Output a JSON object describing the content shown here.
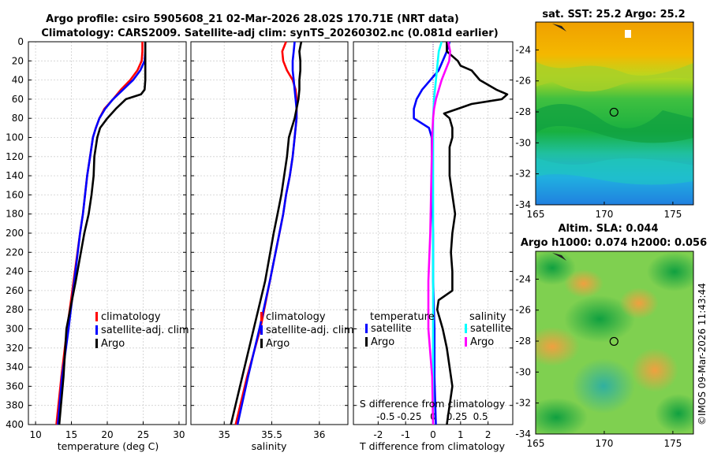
{
  "header": {
    "title_line1": "Argo profile: csiro 5905608_21 02-Mar-2026 28.02S 170.71E (NRT data)",
    "title_line2": "Climatology: CARS2009. Satellite-adj clim: synTS_20260302.nc (0.081d earlier)"
  },
  "colors": {
    "climatology": "#ff0000",
    "satellite": "#0000ff",
    "argo": "#000000",
    "sal_satellite": "#00ffff",
    "sal_argo": "#ff00ff"
  },
  "chart_data": [
    {
      "type": "line",
      "name": "temperature",
      "xlabel": "temperature (deg C)",
      "ylabel": "",
      "xlim": [
        9,
        31
      ],
      "ylim": [
        400,
        0
      ],
      "xticks": [
        "10",
        "15",
        "20",
        "25",
        "30"
      ],
      "yticks": [
        "0",
        "20",
        "40",
        "60",
        "80",
        "100",
        "120",
        "140",
        "160",
        "180",
        "200",
        "220",
        "240",
        "260",
        "280",
        "300",
        "320",
        "340",
        "360",
        "380",
        "400"
      ],
      "grid": true,
      "legend": {
        "position": "lower-right",
        "labels": [
          "climatology",
          "satellite-adj. clim",
          "Argo"
        ]
      },
      "series": [
        {
          "name": "climatology",
          "color_key": "climatology",
          "depth": [
            0,
            10,
            20,
            30,
            40,
            50,
            60,
            70,
            80,
            90,
            100,
            120,
            140,
            160,
            180,
            200,
            250,
            300,
            350,
            400
          ],
          "values": [
            24.9,
            24.9,
            24.8,
            24.2,
            23.2,
            21.9,
            20.8,
            19.6,
            18.9,
            18.4,
            18.0,
            17.6,
            17.2,
            16.9,
            16.6,
            16.2,
            15.3,
            14.4,
            13.6,
            12.9
          ]
        },
        {
          "name": "satellite-adj. clim",
          "color_key": "satellite",
          "depth": [
            0,
            10,
            20,
            30,
            40,
            50,
            60,
            70,
            80,
            90,
            100,
            120,
            140,
            160,
            180,
            200,
            250,
            300,
            350,
            400
          ],
          "values": [
            25.3,
            25.3,
            25.2,
            24.6,
            23.6,
            22.2,
            20.8,
            19.7,
            18.9,
            18.4,
            18.0,
            17.6,
            17.2,
            16.9,
            16.6,
            16.2,
            15.4,
            14.6,
            13.7,
            13.1
          ]
        },
        {
          "name": "Argo",
          "color_key": "argo",
          "depth": [
            0,
            10,
            20,
            30,
            40,
            50,
            55,
            60,
            70,
            80,
            90,
            100,
            120,
            140,
            160,
            180,
            200,
            250,
            300,
            350,
            400
          ],
          "values": [
            25.3,
            25.3,
            25.3,
            25.3,
            25.3,
            25.2,
            24.7,
            22.6,
            21.2,
            20.0,
            19.0,
            18.6,
            18.2,
            18.1,
            17.8,
            17.4,
            16.8,
            15.6,
            14.3,
            13.9,
            13.3
          ]
        }
      ]
    },
    {
      "type": "line",
      "name": "salinity",
      "xlabel": "salinity",
      "xlim": [
        34.65,
        36.3
      ],
      "ylim": [
        400,
        0
      ],
      "xticks": [
        "35",
        "35.5",
        "36"
      ],
      "grid": true,
      "legend": {
        "position": "lower-right",
        "labels": [
          "climatology",
          "satellite-adj. clim",
          "Argo"
        ]
      },
      "series": [
        {
          "name": "climatology",
          "color_key": "climatology",
          "depth": [
            0,
            10,
            20,
            30,
            40,
            50,
            60,
            70,
            80,
            100,
            120,
            140,
            160,
            180,
            200,
            250,
            300,
            350,
            400
          ],
          "values": [
            35.65,
            35.61,
            35.62,
            35.66,
            35.72,
            35.75,
            35.76,
            35.76,
            35.76,
            35.74,
            35.72,
            35.69,
            35.65,
            35.62,
            35.58,
            35.48,
            35.38,
            35.24,
            35.12
          ]
        },
        {
          "name": "satellite-adj. clim",
          "color_key": "satellite",
          "depth": [
            0,
            10,
            20,
            30,
            40,
            50,
            60,
            70,
            80,
            100,
            120,
            140,
            160,
            180,
            200,
            250,
            300,
            350,
            400
          ],
          "values": [
            35.74,
            35.73,
            35.72,
            35.72,
            35.73,
            35.74,
            35.75,
            35.76,
            35.76,
            35.74,
            35.72,
            35.69,
            35.65,
            35.62,
            35.58,
            35.48,
            35.37,
            35.25,
            35.14
          ]
        },
        {
          "name": "Argo",
          "color_key": "argo",
          "depth": [
            0,
            10,
            20,
            30,
            40,
            50,
            60,
            70,
            80,
            90,
            100,
            120,
            140,
            160,
            180,
            200,
            250,
            300,
            350,
            400
          ],
          "values": [
            35.81,
            35.79,
            35.8,
            35.8,
            35.79,
            35.79,
            35.78,
            35.76,
            35.74,
            35.71,
            35.68,
            35.66,
            35.63,
            35.6,
            35.56,
            35.52,
            35.43,
            35.31,
            35.19,
            35.07
          ]
        }
      ]
    },
    {
      "type": "line",
      "name": "differences",
      "xlabel": "T difference from climatology",
      "xlabel2": "S difference from climatology",
      "xlim": [
        -2.9,
        2.9
      ],
      "ylim": [
        400,
        0
      ],
      "xticks": [
        "-2",
        "-1",
        "0",
        "1",
        "2"
      ],
      "xticks2": [
        "-0.5",
        "-0.25",
        "0",
        "0.25",
        "0.5"
      ],
      "grid": true,
      "legend_temperature": {
        "title": "temperature",
        "labels": [
          "satellite",
          "Argo"
        ]
      },
      "legend_salinity": {
        "title": "salinity",
        "labels": [
          "satellite",
          "Argo"
        ]
      },
      "series": [
        {
          "name": "temperature satellite",
          "color_key": "satellite",
          "depth": [
            0,
            10,
            20,
            30,
            40,
            50,
            60,
            70,
            80,
            90,
            100,
            150,
            200,
            250,
            300,
            350,
            400
          ],
          "values": [
            0.6,
            0.5,
            0.35,
            0.2,
            -0.1,
            -0.4,
            -0.6,
            -0.7,
            -0.7,
            -0.15,
            -0.05,
            -0.05,
            0.0,
            0.0,
            0.05,
            0.05,
            0.1
          ]
        },
        {
          "name": "temperature Argo",
          "color_key": "argo",
          "depth": [
            0,
            10,
            20,
            25,
            30,
            40,
            50,
            55,
            60,
            65,
            70,
            75,
            80,
            90,
            100,
            110,
            120,
            140,
            160,
            180,
            200,
            220,
            240,
            260,
            270,
            280,
            300,
            320,
            340,
            360,
            380,
            400
          ],
          "values": [
            0.5,
            0.5,
            0.9,
            1.0,
            1.4,
            1.7,
            2.3,
            2.7,
            2.5,
            1.4,
            0.9,
            0.4,
            0.6,
            0.7,
            0.7,
            0.6,
            0.6,
            0.6,
            0.7,
            0.8,
            0.7,
            0.65,
            0.7,
            0.7,
            0.2,
            0.15,
            0.35,
            0.5,
            0.6,
            0.7,
            0.6,
            0.5
          ]
        },
        {
          "name": "salinity satellite",
          "color_key": "sal_satellite",
          "depth": [
            0,
            10,
            20,
            40,
            60,
            80,
            100,
            200,
            300,
            400
          ],
          "values": [
            0.09,
            0.06,
            0.05,
            0.03,
            0.01,
            0.0,
            0.0,
            0.0,
            0.0,
            0.0
          ]
        },
        {
          "name": "salinity Argo",
          "color_key": "sal_argo",
          "depth": [
            0,
            10,
            20,
            30,
            40,
            50,
            60,
            70,
            80,
            100,
            150,
            200,
            250,
            300,
            350,
            400
          ],
          "values": [
            0.16,
            0.18,
            0.17,
            0.13,
            0.09,
            0.06,
            0.03,
            0.01,
            0.0,
            -0.01,
            -0.02,
            -0.03,
            -0.05,
            -0.05,
            -0.01,
            0.0
          ]
        }
      ]
    },
    {
      "type": "heatmap",
      "name": "sst-map",
      "title": "sat. SST: 25.2 Argo: 25.2",
      "xlim": [
        165,
        176.5
      ],
      "ylim": [
        -34,
        -22.2
      ],
      "xticks": [
        "165",
        "170",
        "175"
      ],
      "yticks": [
        "-24",
        "-26",
        "-28",
        "-30",
        "-32",
        "-34"
      ],
      "marker": {
        "lon": 170.71,
        "lat": -28.02
      }
    },
    {
      "type": "heatmap",
      "name": "sla-map",
      "title_line1": "Altim. SLA: 0.044",
      "title_line2": "Argo h1000: 0.074 h2000: 0.056",
      "xlim": [
        165,
        176.5
      ],
      "ylim": [
        -34,
        -22.2
      ],
      "xticks": [
        "165",
        "170",
        "175"
      ],
      "yticks": [
        "-24",
        "-26",
        "-28",
        "-30",
        "-32",
        "-34"
      ],
      "marker": {
        "lon": 170.71,
        "lat": -28.02
      }
    }
  ],
  "watermark": "©IMOS 09-Mar-2026 11:43:44"
}
